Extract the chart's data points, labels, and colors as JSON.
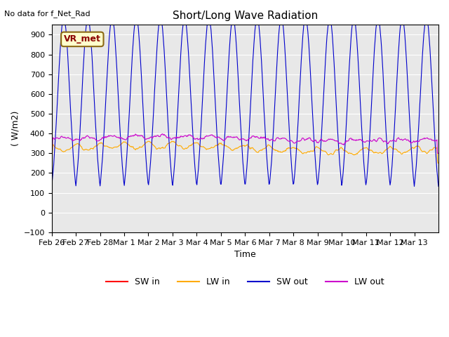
{
  "title": "Short/Long Wave Radiation",
  "xlabel": "Time",
  "ylabel": "( W/m2)",
  "ylim": [
    -100,
    950
  ],
  "yticks": [
    -100,
    0,
    100,
    200,
    300,
    400,
    500,
    600,
    700,
    800,
    900
  ],
  "background_color": "#e8e8e8",
  "note": "No data for f_Net_Rad",
  "station_label": "VR_met",
  "legend": [
    "SW in",
    "LW in",
    "SW out",
    "LW out"
  ],
  "legend_colors": [
    "#ff0000",
    "#ffaa00",
    "#0000cc",
    "#cc00cc"
  ],
  "x_labels": [
    "Feb 26",
    "Feb 27",
    "Feb 28",
    "Mar 1",
    "Mar 2",
    "Mar 3",
    "Mar 4",
    "Mar 5",
    "Mar 6",
    "Mar 7",
    "Mar 8",
    "Mar 9",
    "Mar 10",
    "Mar 11",
    "Mar 12",
    "Mar 13"
  ],
  "n_days": 16,
  "n_points_per_day": 48
}
